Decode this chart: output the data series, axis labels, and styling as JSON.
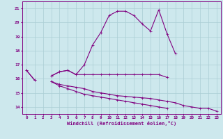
{
  "xlabel": "Windchill (Refroidissement éolien,°C)",
  "bg_color": "#cde8ed",
  "grid_color": "#aacdd4",
  "line_color": "#800080",
  "x": [
    0,
    1,
    2,
    3,
    4,
    5,
    6,
    7,
    8,
    9,
    10,
    11,
    12,
    13,
    14,
    15,
    16,
    17,
    18,
    19,
    20,
    21,
    22,
    23
  ],
  "line1": [
    16.6,
    15.9,
    null,
    16.2,
    16.5,
    16.6,
    16.3,
    17.0,
    18.4,
    19.3,
    20.5,
    20.8,
    20.8,
    20.5,
    19.9,
    19.4,
    20.9,
    19.2,
    17.8,
    null,
    null,
    null,
    null,
    null
  ],
  "line2": [
    16.6,
    15.9,
    null,
    16.2,
    16.5,
    16.6,
    16.3,
    16.3,
    16.3,
    16.3,
    16.3,
    16.3,
    16.3,
    16.3,
    16.3,
    16.3,
    16.3,
    16.1,
    null,
    null,
    null,
    null,
    null,
    null
  ],
  "line3": [
    null,
    null,
    null,
    15.8,
    15.6,
    15.5,
    15.4,
    15.3,
    15.1,
    15.0,
    14.9,
    14.8,
    14.75,
    14.7,
    14.65,
    14.6,
    14.5,
    14.4,
    14.3,
    14.1,
    14.0,
    13.9,
    13.9,
    13.7
  ],
  "line4": [
    null,
    null,
    null,
    15.8,
    15.5,
    15.3,
    15.1,
    14.9,
    14.8,
    14.7,
    14.6,
    14.5,
    14.4,
    14.3,
    14.2,
    14.1,
    14.0,
    13.9,
    null,
    null,
    null,
    null,
    null,
    null
  ],
  "ylim": [
    13.5,
    21.5
  ],
  "yticks": [
    14,
    15,
    16,
    17,
    18,
    19,
    20,
    21
  ],
  "xticks": [
    0,
    1,
    2,
    3,
    4,
    5,
    6,
    7,
    8,
    9,
    10,
    11,
    12,
    13,
    14,
    15,
    16,
    17,
    18,
    19,
    20,
    21,
    22,
    23
  ]
}
